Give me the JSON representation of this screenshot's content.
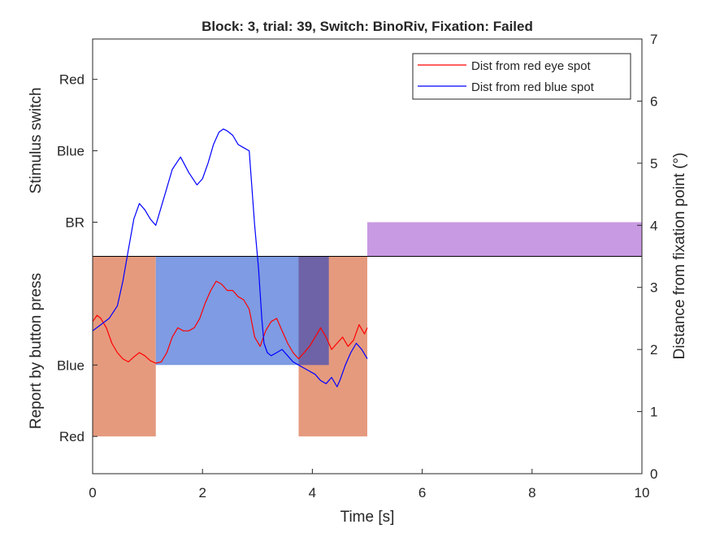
{
  "chart_data": {
    "type": "line",
    "title": "Block: 3, trial: 39, Switch: BinoRiv, Fixation: Failed",
    "xlabel": "Time [s]",
    "ylabel_left_top": "Stimulus switch",
    "ylabel_left_bottom": "Report by button press",
    "ylabel_right": "Distance from fixation point (°)",
    "xlim": [
      0,
      10
    ],
    "ylim_right": [
      0,
      7
    ],
    "x_ticks": [
      0,
      2,
      4,
      6,
      8,
      10
    ],
    "x_tick_labels": [
      "0",
      "2",
      "4",
      "6",
      "8",
      "10"
    ],
    "y_right_ticks": [
      0,
      1,
      2,
      3,
      4,
      5,
      6,
      7
    ],
    "y_right_tick_labels": [
      "0",
      "1",
      "2",
      "3",
      "4",
      "5",
      "6",
      "7"
    ],
    "y_left_ticks": [
      {
        "label": "Red",
        "value": 6.35
      },
      {
        "label": "Blue",
        "value": 5.2
      },
      {
        "label": "BR",
        "value": 4.05
      },
      {
        "label": "Blue",
        "value": 1.75
      },
      {
        "label": "Red",
        "value": 0.6
      }
    ],
    "separator_value": 3.5,
    "legend_position": "top-right",
    "grid": false,
    "stimulus_bands": [
      {
        "label": "BR",
        "x0": 5.0,
        "x1": 10.0,
        "y0": 3.5,
        "y1": 4.05,
        "color": "#c89ae3"
      }
    ],
    "report_bands": [
      {
        "label": "Red",
        "x0": 0.0,
        "x1": 1.15,
        "y0": 0.6,
        "y1": 3.5,
        "color": "#e59a7e"
      },
      {
        "label": "Blue",
        "x0": 1.15,
        "x1": 4.3,
        "y0": 1.75,
        "y1": 3.5,
        "color": "#7e9be3"
      },
      {
        "label": "Red",
        "x0": 3.75,
        "x1": 5.0,
        "y0": 0.6,
        "y1": 3.5,
        "color": "#e59a7e"
      }
    ],
    "overlap_color": "#6e63a6",
    "series": [
      {
        "name": "Dist from red eye spot",
        "color": "#ff0000",
        "x": [
          0,
          0.08,
          0.15,
          0.25,
          0.35,
          0.45,
          0.55,
          0.65,
          0.75,
          0.85,
          0.95,
          1.05,
          1.15,
          1.25,
          1.35,
          1.45,
          1.55,
          1.65,
          1.75,
          1.85,
          1.95,
          2.05,
          2.15,
          2.25,
          2.35,
          2.45,
          2.55,
          2.65,
          2.75,
          2.85,
          2.95,
          3.05,
          3.15,
          3.25,
          3.35,
          3.45,
          3.55,
          3.65,
          3.75,
          3.85,
          3.95,
          4.05,
          4.15,
          4.25,
          4.35,
          4.45,
          4.55,
          4.65,
          4.75,
          4.85,
          4.95,
          5.0
        ],
        "y": [
          2.45,
          2.55,
          2.5,
          2.35,
          2.1,
          1.95,
          1.85,
          1.8,
          1.88,
          1.95,
          1.9,
          1.82,
          1.78,
          1.8,
          1.95,
          2.2,
          2.35,
          2.3,
          2.3,
          2.35,
          2.5,
          2.75,
          2.95,
          3.1,
          3.05,
          2.95,
          2.95,
          2.85,
          2.8,
          2.65,
          2.2,
          2.05,
          2.3,
          2.45,
          2.5,
          2.3,
          2.1,
          1.95,
          1.85,
          1.95,
          2.05,
          2.2,
          2.35,
          2.2,
          2.0,
          2.1,
          2.2,
          2.05,
          2.15,
          2.4,
          2.25,
          2.35
        ]
      },
      {
        "name": "Dist from red blue spot",
        "color": "#0000ff",
        "x": [
          0,
          0.15,
          0.3,
          0.45,
          0.55,
          0.65,
          0.75,
          0.85,
          0.95,
          1.05,
          1.15,
          1.25,
          1.35,
          1.45,
          1.6,
          1.75,
          1.9,
          2.0,
          2.1,
          2.2,
          2.3,
          2.38,
          2.45,
          2.55,
          2.65,
          2.75,
          2.85,
          2.95,
          3.02,
          3.08,
          3.12,
          3.18,
          3.25,
          3.35,
          3.45,
          3.55,
          3.65,
          3.75,
          3.85,
          3.95,
          4.05,
          4.15,
          4.25,
          4.35,
          4.45,
          4.5,
          4.6,
          4.7,
          4.8,
          4.9,
          5.0
        ],
        "y": [
          2.3,
          2.4,
          2.5,
          2.7,
          3.1,
          3.6,
          4.1,
          4.35,
          4.25,
          4.1,
          4.0,
          4.3,
          4.6,
          4.9,
          5.1,
          4.85,
          4.65,
          4.75,
          5.0,
          5.3,
          5.5,
          5.55,
          5.52,
          5.45,
          5.3,
          5.25,
          5.2,
          4.0,
          3.3,
          2.5,
          2.1,
          1.95,
          1.9,
          1.95,
          2.0,
          1.9,
          1.8,
          1.75,
          1.7,
          1.65,
          1.6,
          1.5,
          1.45,
          1.55,
          1.4,
          1.5,
          1.75,
          1.95,
          2.1,
          2.0,
          1.85
        ]
      }
    ]
  }
}
